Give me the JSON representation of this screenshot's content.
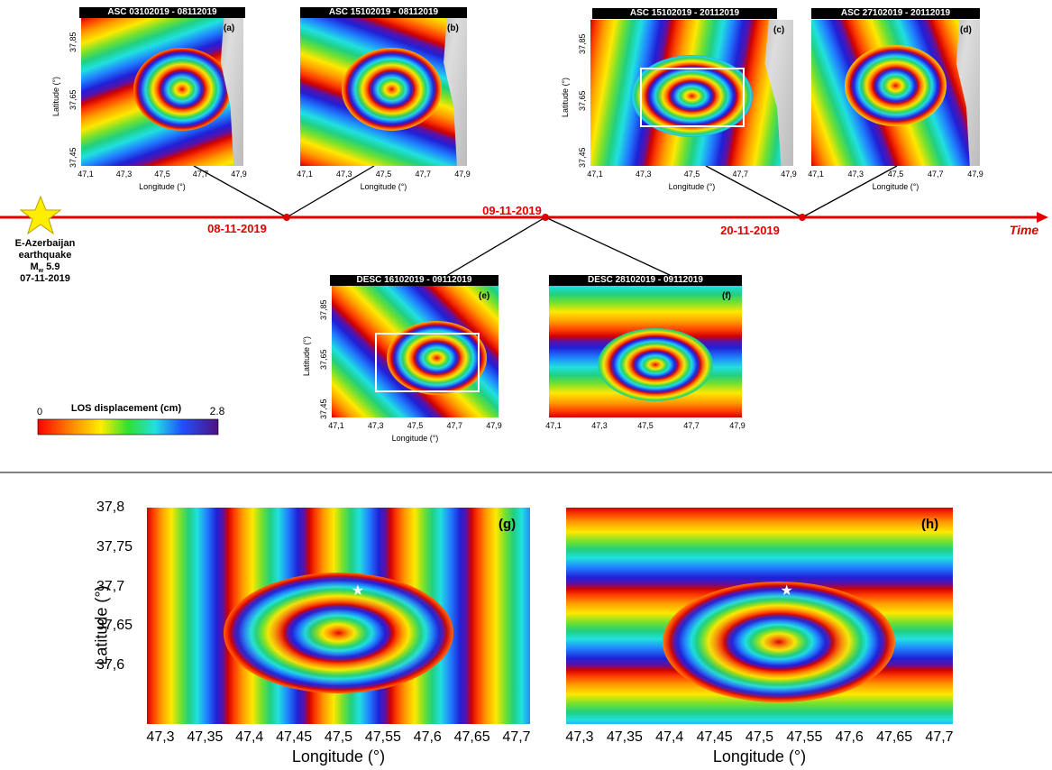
{
  "panels": [
    {
      "title": "ASC  03102019 - 08112019",
      "label": "(a)",
      "xticks": [
        "47,1",
        "47,3",
        "47,5",
        "47,7",
        "47,9"
      ],
      "yticks": [
        "37,85",
        "37,65",
        "37,45"
      ],
      "xlabel": "Longitude (°)",
      "ylabel": "Latitude (°)"
    },
    {
      "title": "ASC  15102019 - 08112019",
      "label": "(b)",
      "xticks": [
        "47,1",
        "47,3",
        "47,5",
        "47,7",
        "47,9"
      ],
      "xlabel": "Longitude (°)"
    },
    {
      "title": "ASC  15102019 - 20112019",
      "label": "(c)",
      "xticks": [
        "47,1",
        "47,3",
        "47,5",
        "47,7",
        "47,9"
      ],
      "yticks": [
        "37,85",
        "37,65",
        "37,45"
      ],
      "xlabel": "Longitude (°)",
      "ylabel": "Latitude (°)"
    },
    {
      "title": "ASC  27102019 - 20112019",
      "label": "(d)",
      "xticks": [
        "47,1",
        "47,3",
        "47,5",
        "47,7",
        "47,9"
      ],
      "xlabel": "Longitude (°)"
    },
    {
      "title": "DESC  16102019 - 09112019",
      "label": "(e)",
      "xticks": [
        "47,1",
        "47,3",
        "47,5",
        "47,7",
        "47,9"
      ],
      "yticks": [
        "37,85",
        "37,65",
        "37,45"
      ],
      "xlabel": "Longitude (°)",
      "ylabel": "Latitude (°)"
    },
    {
      "title": "DESC  28102019 - 09112019",
      "label": "(f)",
      "xticks": [
        "47,1",
        "47,3",
        "47,5",
        "47,7",
        "47,9"
      ]
    },
    {
      "label": "(g)",
      "xticks": [
        "47,3",
        "47,35",
        "47,4",
        "47,45",
        "47,5",
        "47,55",
        "47,6",
        "47,65",
        "47,7"
      ],
      "yticks": [
        "37,8",
        "37,75",
        "37,7",
        "37,65",
        "37,6"
      ],
      "xlabel": "Longitude (°)",
      "ylabel": "Latitude (°)"
    },
    {
      "label": "(h)",
      "xticks": [
        "47,3",
        "47,35",
        "47,4",
        "47,45",
        "47,5",
        "47,55",
        "47,6",
        "47,65",
        "47,7"
      ],
      "xlabel": "Longitude (°)"
    }
  ],
  "timeline": {
    "dates": [
      "08-11-2019",
      "09-11-2019",
      "20-11-2019"
    ],
    "end_label": "Time"
  },
  "event": {
    "name": [
      "E-Azerbaijan",
      "earthquake"
    ],
    "magnitude": {
      "symbol": "M",
      "subscript": "w",
      "value": " 5.9"
    },
    "date": "07-11-2019"
  },
  "legend": {
    "title": "LOS displacement (cm)",
    "min": "0",
    "max": "2.8"
  }
}
